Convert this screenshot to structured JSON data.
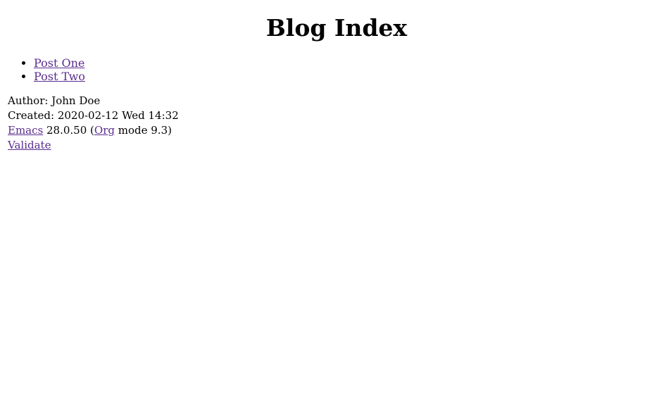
{
  "title": "Blog Index",
  "posts": [
    {
      "label": "Post One"
    },
    {
      "label": "Post Two"
    }
  ],
  "postamble": {
    "author_label": "Author:",
    "author_name": "John Doe",
    "created_label": "Created:",
    "created_value": "2020-02-12 Wed 14:32",
    "emacs_link": "Emacs",
    "emacs_version": "28.0.50",
    "org_link": "Org",
    "org_version_text": "mode 9.3",
    "validate_link": "Validate"
  },
  "colors": {
    "link": "#5a2d8e",
    "text": "#000000",
    "background": "#ffffff"
  }
}
